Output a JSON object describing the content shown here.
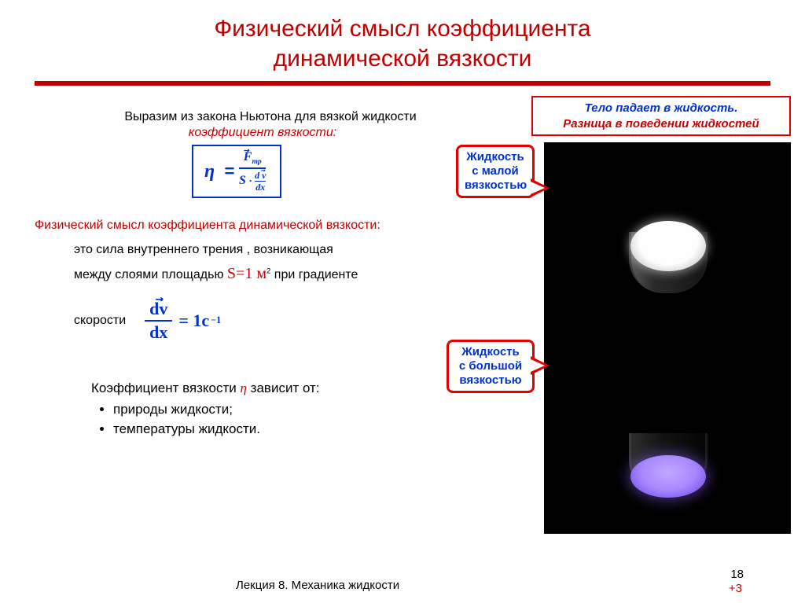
{
  "title": {
    "line1": "Физический смысл коэффициента",
    "line2": "динамической вязкости",
    "color": "#c00000",
    "fontsize": 30
  },
  "rule": {
    "color": "#c00000",
    "height": 6
  },
  "intro": {
    "line1": "Выразим из закона Ньютона для вязкой жидкости",
    "line2": "коэффициент вязкости:"
  },
  "formula1": {
    "lhs": "η",
    "numer": "F",
    "numer_sub": "mр",
    "denom_left": "S",
    "denom_frac_num": "d v",
    "denom_frac_den": "dx",
    "border": "#0033cc",
    "color": "#0033cc"
  },
  "sense": {
    "head": "Физический смысл коэффициента динамической вязкости:",
    "body1": "это сила внутреннего трения , возникающая",
    "body2_pre": "между слоями площадью ",
    "S_expr": "S=1 м",
    "S_sup": "2",
    "body2_post": " при градиенте"
  },
  "velocity": {
    "label": "скорости",
    "frac_num": "dv",
    "frac_den": "dx",
    "rhs": "= 1c",
    "exp": "−1"
  },
  "depends": {
    "head_pre": "Коэффициент вязкости ",
    "eta": "η",
    "head_post": " зависит от:",
    "items": [
      "природы жидкости;",
      "температуры жидкости."
    ]
  },
  "right": {
    "caption_l1": "Тело падает в жидкость.",
    "caption_l2": "Разница в поведении жидкостей",
    "callout1": {
      "l1": "Жидкость",
      "l2": "с малой",
      "l3": "вязкостью"
    },
    "callout2": {
      "l1": "Жидкость",
      "l2": "с большой",
      "l3": "вязкостью"
    },
    "viz": {
      "bg": "#000000",
      "top_glow": "#ffffff",
      "bottom_glow": "#9b7bff"
    }
  },
  "footer": {
    "lecture": "Лекция 8. Механика жидкости",
    "page": "18",
    "plus": "+3"
  }
}
